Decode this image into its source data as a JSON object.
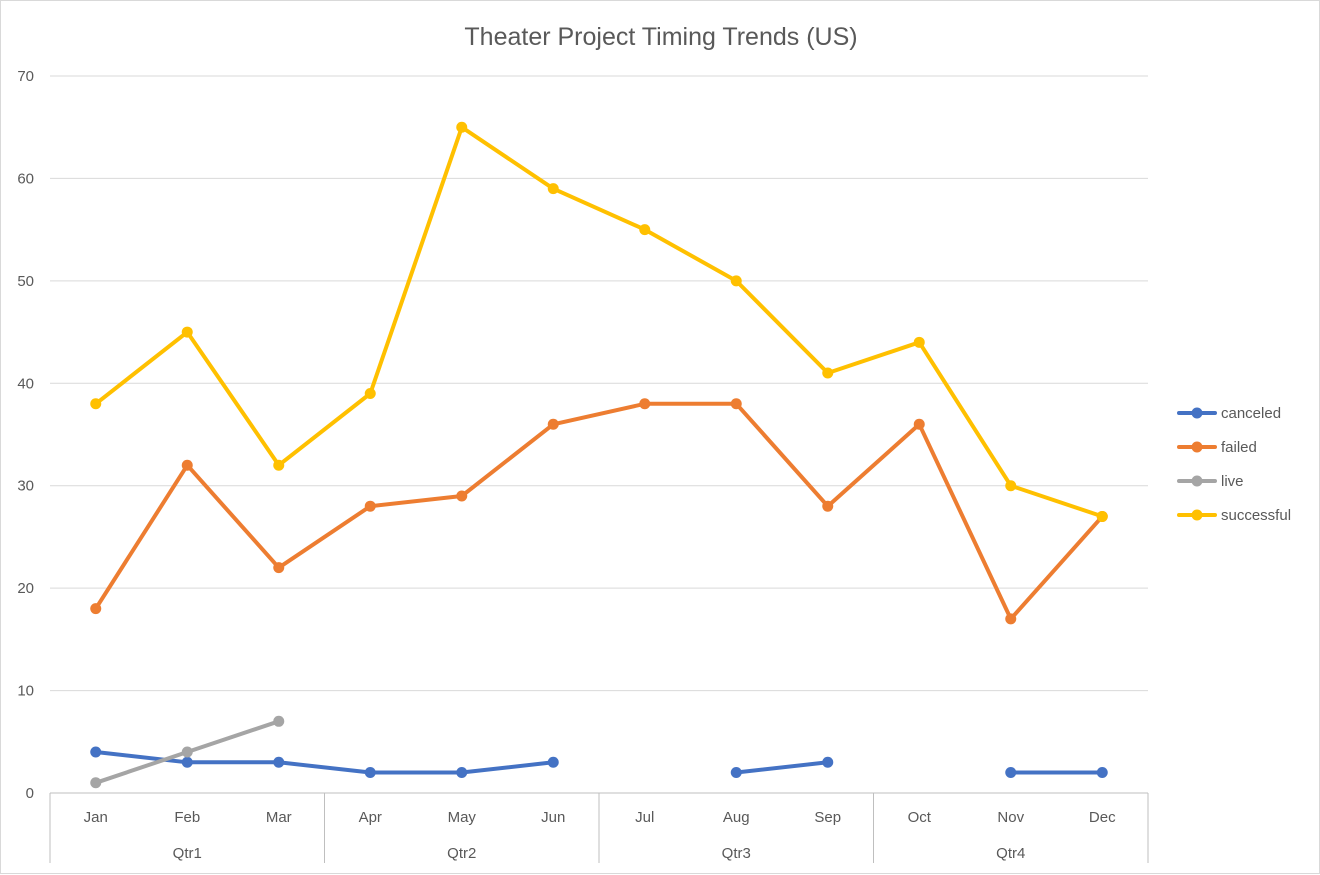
{
  "chart_data": {
    "type": "line",
    "title": "Theater Project Timing Trends (US)",
    "xlabel": "",
    "ylabel": "",
    "ylim": [
      0,
      70
    ],
    "yticks": [
      0,
      10,
      20,
      30,
      40,
      50,
      60,
      70
    ],
    "categories": [
      "Jan",
      "Feb",
      "Mar",
      "Apr",
      "May",
      "Jun",
      "Jul",
      "Aug",
      "Sep",
      "Oct",
      "Nov",
      "Dec"
    ],
    "category_groups": [
      {
        "label": "Qtr1",
        "span": 3
      },
      {
        "label": "Qtr2",
        "span": 3
      },
      {
        "label": "Qtr3",
        "span": 3
      },
      {
        "label": "Qtr4",
        "span": 3
      }
    ],
    "grid": true,
    "legend_position": "right",
    "series": [
      {
        "name": "canceled",
        "color": "#4472C4",
        "values": [
          4,
          3,
          3,
          2,
          2,
          3,
          null,
          2,
          3,
          null,
          2,
          2
        ]
      },
      {
        "name": "failed",
        "color": "#ED7D31",
        "values": [
          18,
          32,
          22,
          28,
          29,
          36,
          38,
          38,
          28,
          36,
          17,
          27
        ]
      },
      {
        "name": "live",
        "color": "#A5A5A5",
        "values": [
          1,
          4,
          7,
          null,
          null,
          null,
          null,
          null,
          null,
          null,
          null,
          null
        ]
      },
      {
        "name": "successful",
        "color": "#FFC000",
        "values": [
          38,
          45,
          32,
          39,
          65,
          59,
          55,
          50,
          41,
          44,
          30,
          27
        ]
      }
    ]
  }
}
